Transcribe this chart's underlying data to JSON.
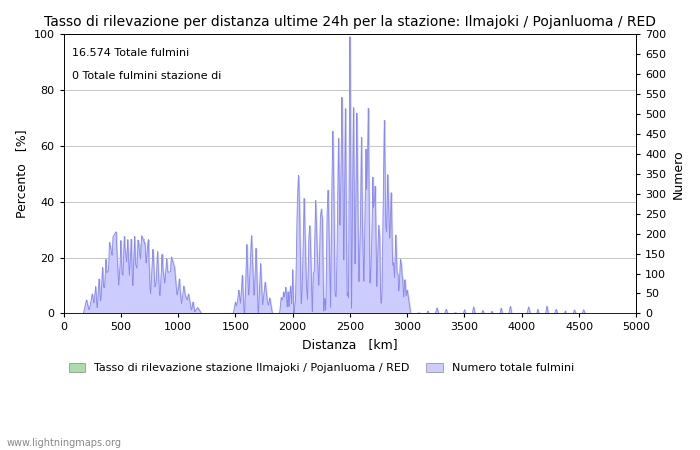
{
  "title": "Tasso di rilevazione per distanza ultime 24h per la stazione: Ilmajoki / Pojanluoma / RED",
  "xlabel": "Distanza   [km]",
  "ylabel_left": "Percento   [%]",
  "ylabel_right": "Numero",
  "annotation_line1": "16.574 Totale fulmini",
  "annotation_line2": "0 Totale fulmini stazione di",
  "legend_label1": "Tasso di rilevazione stazione Ilmajoki / Pojanluoma / RED",
  "legend_label2": "Numero totale fulmini",
  "watermark": "www.lightningmaps.org",
  "xlim": [
    0,
    5000
  ],
  "ylim_left": [
    0,
    100
  ],
  "ylim_right": [
    0,
    700
  ],
  "xticks": [
    0,
    500,
    1000,
    1500,
    2000,
    2500,
    3000,
    3500,
    4000,
    4500,
    5000
  ],
  "yticks_left": [
    0,
    20,
    40,
    60,
    80,
    100
  ],
  "yticks_right": [
    0,
    50,
    100,
    150,
    200,
    250,
    300,
    350,
    400,
    450,
    500,
    550,
    600,
    650,
    700
  ],
  "fill_color_green": "#aaddaa",
  "fill_color_blue": "#ccccff",
  "line_color": "#8888ee",
  "bg_color": "#ffffff",
  "grid_color": "#bbbbbb",
  "title_fontsize": 10,
  "label_fontsize": 9,
  "tick_fontsize": 8
}
